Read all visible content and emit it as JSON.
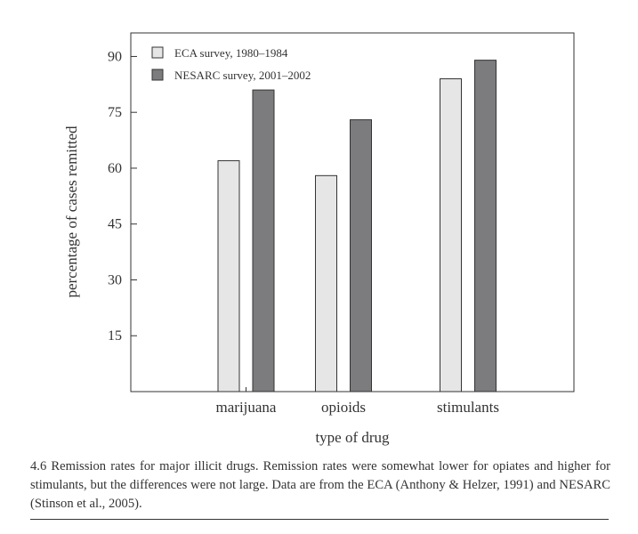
{
  "chart_data": {
    "type": "bar",
    "categories": [
      "marijuana",
      "opioids",
      "stimulants"
    ],
    "series": [
      {
        "name": "ECA survey, 1980–1984",
        "values": [
          62,
          58,
          84
        ],
        "color": "#e6e6e6"
      },
      {
        "name": "NESARC survey, 2001–2002",
        "values": [
          81,
          73,
          89
        ],
        "color": "#7c7c7e"
      }
    ],
    "xlabel": "type of drug",
    "ylabel": "percentage of cases remitted",
    "ylim": [
      0,
      100
    ],
    "yticks": [
      15,
      30,
      45,
      60,
      75,
      90
    ],
    "legend_position": "top-left",
    "grid": false
  },
  "caption": "4.6 Remission rates for major illicit drugs. Remission rates were somewhat lower for opiates and higher for stimulants, but the differences were not large. Data are from the ECA (Anthony & Helzer, 1991) and NESARC (Stinson et al., 2005)."
}
